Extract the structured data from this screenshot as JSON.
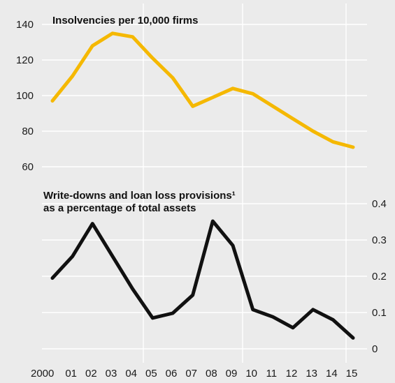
{
  "chart_data": [
    {
      "type": "line",
      "title": "Insolvencies per 10,000 firms",
      "x_categories": [
        "2000",
        "01",
        "02",
        "03",
        "04",
        "05",
        "06",
        "07",
        "08",
        "09",
        "10",
        "11",
        "12",
        "13",
        "14",
        "15"
      ],
      "y_axis_side": "left",
      "yticks": [
        "140",
        "120",
        "100",
        "80",
        "60"
      ],
      "ylim": [
        60,
        140
      ],
      "grid": true,
      "series": [
        {
          "color": "#f5b800",
          "values": [
            97,
            111,
            128,
            135,
            133,
            121,
            110,
            94,
            99,
            104,
            101,
            94,
            87,
            80,
            74,
            71
          ]
        }
      ]
    },
    {
      "type": "line",
      "title": "Write-downs and loan loss provisions¹",
      "subtitle": "as a percentage of total assets",
      "x_categories": [
        "2000",
        "01",
        "02",
        "03",
        "04",
        "05",
        "06",
        "07",
        "08",
        "09",
        "10",
        "11",
        "12",
        "13",
        "14",
        "15"
      ],
      "y_axis_side": "right",
      "yticks": [
        "0.4",
        "0.3",
        "0.2",
        "0.1",
        "0"
      ],
      "ylim": [
        0,
        0.4
      ],
      "grid": true,
      "series": [
        {
          "color": "#111111",
          "values": [
            0.195,
            0.255,
            0.345,
            0.255,
            0.165,
            0.085,
            0.098,
            0.148,
            0.352,
            0.285,
            0.108,
            0.088,
            0.058,
            0.108,
            0.08,
            0.03
          ]
        }
      ]
    }
  ]
}
